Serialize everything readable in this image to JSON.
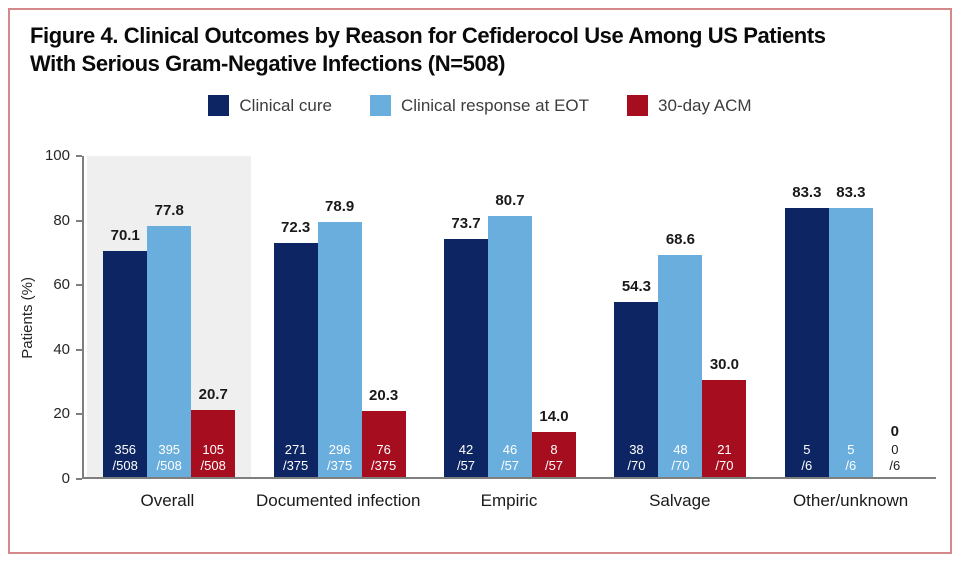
{
  "figure": {
    "title_line1": "Figure 4. Clinical Outcomes by Reason for Cefiderocol Use Among US Patients",
    "title_line2": "With Serious Gram-Negative Infections (N=508)"
  },
  "colors": {
    "border": "#d4888a",
    "axis": "#7f7f7f",
    "highlight_bg": "#efefef",
    "clinical_cure": "#0d2562",
    "clinical_response": "#6aaede",
    "acm": "#a60e1f"
  },
  "chart_data": {
    "type": "bar",
    "ylabel": "Patients (%)",
    "ylim": [
      0,
      100
    ],
    "yticks": [
      0,
      20,
      40,
      60,
      80,
      100
    ],
    "grid": false,
    "legend_position": "top-center",
    "highlight_category": "Overall",
    "categories": [
      "Overall",
      "Documented infection",
      "Empiric",
      "Salvage",
      "Other/unknown"
    ],
    "series": [
      {
        "name": "Clinical cure",
        "color": "#0d2562",
        "values": [
          70.1,
          72.3,
          73.7,
          54.3,
          83.3
        ],
        "labels": [
          "70.1",
          "72.3",
          "73.7",
          "54.3",
          "83.3"
        ],
        "counts": [
          [
            "356",
            "/508"
          ],
          [
            "271",
            "/375"
          ],
          [
            "42",
            "/57"
          ],
          [
            "38",
            "/70"
          ],
          [
            "5",
            "/6"
          ]
        ]
      },
      {
        "name": "Clinical response at EOT",
        "color": "#6aaede",
        "values": [
          77.8,
          78.9,
          80.7,
          68.6,
          83.3
        ],
        "labels": [
          "77.8",
          "78.9",
          "80.7",
          "68.6",
          "83.3"
        ],
        "counts": [
          [
            "395",
            "/508"
          ],
          [
            "296",
            "/375"
          ],
          [
            "46",
            "/57"
          ],
          [
            "48",
            "/70"
          ],
          [
            "5",
            "/6"
          ]
        ]
      },
      {
        "name": "30-day ACM",
        "color": "#a60e1f",
        "values": [
          20.7,
          20.3,
          14.0,
          30.0,
          0
        ],
        "labels": [
          "20.7",
          "20.3",
          "14.0",
          "30.0",
          "0"
        ],
        "counts": [
          [
            "105",
            "/508"
          ],
          [
            "76",
            "/375"
          ],
          [
            "8",
            "/57"
          ],
          [
            "21",
            "/70"
          ],
          [
            "0",
            "/6"
          ]
        ]
      }
    ]
  }
}
